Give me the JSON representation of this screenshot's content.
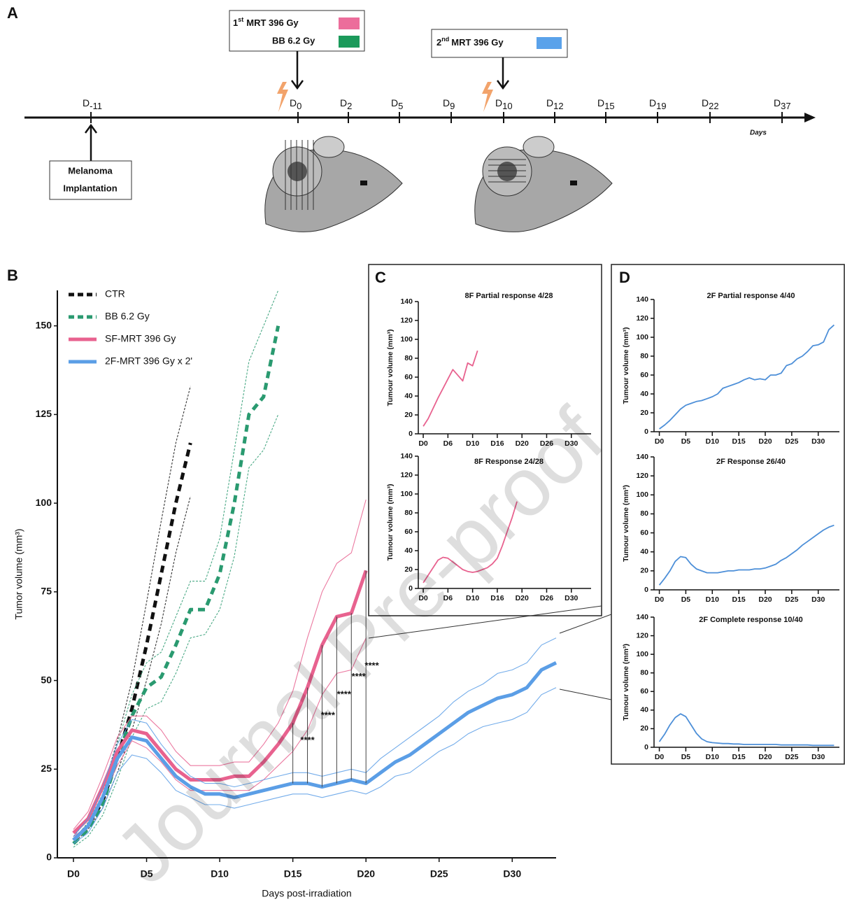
{
  "panels": [
    "A",
    "B",
    "C",
    "D"
  ],
  "timeline": {
    "box1": {
      "n": "1",
      "sup": "st",
      "text": "MRT 396 Gy",
      "color": "#ec6d9b"
    },
    "box1b": {
      "text": "BB 6.2 Gy",
      "color": "#1b9a5b"
    },
    "box2": {
      "n": "2",
      "sup": "nd",
      "text": "MRT 396 Gy",
      "color": "#5aa2ea"
    },
    "days": [
      [
        "D",
        "-11"
      ],
      [
        "D",
        "0"
      ],
      [
        "D",
        "2"
      ],
      [
        "D",
        "5"
      ],
      [
        "D",
        "9"
      ],
      [
        "D",
        "10"
      ],
      [
        "D",
        "12"
      ],
      [
        "D",
        "15"
      ],
      [
        "D",
        "19"
      ],
      [
        "D",
        "22"
      ],
      [
        "D",
        "37"
      ]
    ],
    "axis_label": "Days",
    "implant": [
      "Melanoma",
      "Implantation"
    ]
  },
  "watermark": "Journal Pre-proof",
  "chart_data": [
    {
      "type": "line",
      "xlabel": "Days post-irradiation",
      "ylabel": "Tumor volume  (mm³)",
      "xlim": [
        -1.1,
        33
      ],
      "ylim": [
        0,
        160
      ],
      "xticks": [
        {
          "value": 0,
          "label": "D0"
        },
        {
          "value": 5,
          "label": "D5"
        },
        {
          "value": 10,
          "label": "D10"
        },
        {
          "value": 15,
          "label": "D15"
        },
        {
          "value": 20,
          "label": "D20"
        },
        {
          "value": 25,
          "label": "D25"
        },
        {
          "value": 30,
          "label": "D30"
        }
      ],
      "yticks": [
        0,
        25,
        50,
        75,
        100,
        125,
        150
      ],
      "legend": "top-left",
      "series": [
        {
          "name": "CTR",
          "color": "#111111",
          "dashed": true,
          "x": [
            0,
            1,
            2,
            3,
            4,
            5,
            6,
            7,
            8
          ],
          "values": [
            5,
            9,
            16,
            28,
            42,
            60,
            80,
            100,
            117
          ],
          "upper": [
            6,
            11,
            19,
            33,
            50,
            72,
            95,
            117,
            133
          ],
          "lower": [
            4,
            8,
            14,
            24,
            36,
            50,
            66,
            86,
            102
          ]
        },
        {
          "name": "BB 6.2 Gy",
          "color": "#2a9a70",
          "dashed": true,
          "x": [
            0,
            1,
            2,
            3,
            4,
            5,
            6,
            7,
            8,
            9,
            10,
            11,
            12,
            13,
            14
          ],
          "values": [
            4,
            8,
            15,
            28,
            40,
            48,
            51,
            60,
            70,
            70,
            80,
            100,
            125,
            130,
            150
          ],
          "upper": [
            5,
            10,
            18,
            32,
            46,
            55,
            58,
            68,
            78,
            78,
            90,
            115,
            140,
            150,
            160
          ],
          "lower": [
            3,
            6,
            12,
            22,
            34,
            42,
            44,
            52,
            62,
            63,
            70,
            85,
            110,
            115,
            125
          ]
        },
        {
          "name": "SF-MRT 396 Gy",
          "color": "#e8628f",
          "dashed": false,
          "x": [
            0,
            1,
            2,
            3,
            4,
            5,
            6,
            7,
            8,
            9,
            10,
            11,
            12,
            13,
            14,
            15,
            16,
            17,
            18,
            19,
            20
          ],
          "values": [
            7,
            11,
            20,
            30,
            36,
            35,
            30,
            25,
            22,
            22,
            22,
            23,
            23,
            27,
            32,
            38,
            48,
            60,
            68,
            69,
            81
          ],
          "upper": [
            8,
            13,
            23,
            34,
            40,
            40,
            36,
            30,
            26,
            26,
            26,
            27,
            27,
            32,
            38,
            47,
            62,
            75,
            83,
            86,
            101
          ],
          "lower": [
            6,
            9,
            17,
            26,
            33,
            31,
            27,
            22,
            19,
            19,
            19,
            19,
            19,
            22,
            26,
            30,
            36,
            46,
            52,
            53,
            62
          ]
        },
        {
          "name": "2F-MRT 396 Gy x 2'",
          "color": "#5b9ee6",
          "dashed": false,
          "x": [
            0,
            1,
            2,
            3,
            4,
            5,
            6,
            7,
            8,
            9,
            10,
            11,
            12,
            13,
            14,
            15,
            16,
            17,
            18,
            19,
            20,
            21,
            22,
            23,
            24,
            25,
            26,
            27,
            28,
            29,
            30,
            31,
            32,
            33
          ],
          "values": [
            5,
            9,
            17,
            28,
            34,
            33,
            28,
            23,
            20,
            18,
            18,
            17,
            18,
            19,
            20,
            21,
            21,
            20,
            21,
            22,
            21,
            24,
            27,
            29,
            32,
            35,
            38,
            41,
            43,
            45,
            46,
            48,
            53,
            55
          ],
          "upper": [
            6,
            11,
            20,
            32,
            39,
            38,
            32,
            27,
            23,
            21,
            21,
            20,
            21,
            22,
            23,
            24,
            24,
            23,
            24,
            25,
            24,
            28,
            31,
            34,
            37,
            40,
            44,
            47,
            49,
            52,
            53,
            55,
            60,
            62
          ],
          "lower": [
            4,
            7,
            14,
            24,
            29,
            28,
            24,
            19,
            17,
            15,
            15,
            14,
            15,
            16,
            17,
            18,
            18,
            17,
            18,
            19,
            18,
            20,
            23,
            24,
            27,
            30,
            32,
            35,
            37,
            38,
            39,
            41,
            46,
            48
          ]
        }
      ],
      "annotations": [
        {
          "x": 16,
          "y": 33,
          "text": "****"
        },
        {
          "x": 17.4,
          "y": 40,
          "text": "****"
        },
        {
          "x": 18.5,
          "y": 46,
          "text": "****"
        },
        {
          "x": 19.5,
          "y": 51,
          "text": "****"
        },
        {
          "x": 20.4,
          "y": 54,
          "text": "****"
        }
      ]
    },
    {
      "type": "line",
      "title": "8F Partial response 4/28",
      "ylabel": "Tumour volume (mm³)",
      "xlim": [
        -1,
        34
      ],
      "ylim": [
        0,
        140
      ],
      "xticks": [
        {
          "value": 0,
          "label": "D0"
        },
        {
          "value": 5,
          "label": "D6"
        },
        {
          "value": 10,
          "label": "D10"
        },
        {
          "value": 15,
          "label": "D16"
        },
        {
          "value": 20,
          "label": "D20"
        },
        {
          "value": 25,
          "label": "D26"
        },
        {
          "value": 30,
          "label": "D30"
        }
      ],
      "yticks": [
        0,
        20,
        40,
        60,
        80,
        100,
        120,
        140
      ],
      "series": [
        {
          "color": "#e8628f",
          "x": [
            0,
            1,
            2,
            3,
            4,
            5,
            6,
            7,
            8,
            9,
            10,
            11
          ],
          "values": [
            8,
            16,
            27,
            38,
            48,
            58,
            68,
            62,
            56,
            75,
            72,
            88
          ]
        }
      ]
    },
    {
      "type": "line",
      "title": "8F Response 24/28",
      "ylabel": "Tumour volume (mm³)",
      "xlim": [
        -1,
        34
      ],
      "ylim": [
        0,
        140
      ],
      "xticks": [
        {
          "value": 0,
          "label": "D0"
        },
        {
          "value": 5,
          "label": "D6"
        },
        {
          "value": 10,
          "label": "D10"
        },
        {
          "value": 15,
          "label": "D16"
        },
        {
          "value": 20,
          "label": "D20"
        },
        {
          "value": 25,
          "label": "D26"
        },
        {
          "value": 30,
          "label": "D30"
        }
      ],
      "yticks": [
        0,
        20,
        40,
        60,
        80,
        100,
        120,
        140
      ],
      "series": [
        {
          "color": "#e8628f",
          "x": [
            0,
            1,
            2,
            3,
            4,
            5,
            6,
            7,
            8,
            9,
            10,
            11,
            12,
            13,
            14,
            15,
            16,
            17,
            18,
            19
          ],
          "values": [
            6,
            14,
            22,
            30,
            33,
            32,
            28,
            24,
            20,
            18,
            17,
            18,
            20,
            22,
            26,
            32,
            45,
            60,
            75,
            92
          ]
        }
      ]
    },
    {
      "type": "line",
      "title": "2F Partial response 4/40",
      "ylabel": "Tumour volume (mm³)",
      "xlim": [
        -1,
        34
      ],
      "ylim": [
        0,
        140
      ],
      "xticks": [
        {
          "value": 0,
          "label": "D0"
        },
        {
          "value": 5,
          "label": "D5"
        },
        {
          "value": 10,
          "label": "D10"
        },
        {
          "value": 15,
          "label": "D15"
        },
        {
          "value": 20,
          "label": "D20"
        },
        {
          "value": 25,
          "label": "D25"
        },
        {
          "value": 30,
          "label": "D30"
        }
      ],
      "yticks": [
        0,
        20,
        40,
        60,
        80,
        100,
        120,
        140
      ],
      "series": [
        {
          "color": "#4d8fd8",
          "x": [
            0,
            1,
            2,
            3,
            4,
            5,
            6,
            7,
            8,
            9,
            10,
            11,
            12,
            13,
            14,
            15,
            16,
            17,
            18,
            19,
            20,
            21,
            22,
            23,
            24,
            25,
            26,
            27,
            28,
            29,
            30,
            31,
            32,
            33
          ],
          "values": [
            3,
            7,
            12,
            18,
            24,
            28,
            30,
            32,
            33,
            35,
            37,
            40,
            46,
            48,
            50,
            52,
            55,
            57,
            55,
            56,
            55,
            60,
            60,
            62,
            70,
            72,
            77,
            80,
            85,
            91,
            92,
            95,
            108,
            113
          ]
        }
      ]
    },
    {
      "type": "line",
      "title": "2F Response 26/40",
      "ylabel": "Tumour volume (mm³)",
      "xlim": [
        -1,
        34
      ],
      "ylim": [
        0,
        140
      ],
      "xticks": [
        {
          "value": 0,
          "label": "D0"
        },
        {
          "value": 5,
          "label": "D5"
        },
        {
          "value": 10,
          "label": "D10"
        },
        {
          "value": 15,
          "label": "D15"
        },
        {
          "value": 20,
          "label": "D20"
        },
        {
          "value": 25,
          "label": "D25"
        },
        {
          "value": 30,
          "label": "D30"
        }
      ],
      "yticks": [
        0,
        20,
        40,
        60,
        80,
        100,
        120,
        140
      ],
      "series": [
        {
          "color": "#4d8fd8",
          "x": [
            0,
            1,
            2,
            3,
            4,
            5,
            6,
            7,
            8,
            9,
            10,
            11,
            12,
            13,
            14,
            15,
            16,
            17,
            18,
            19,
            20,
            21,
            22,
            23,
            24,
            25,
            26,
            27,
            28,
            29,
            30,
            31,
            32,
            33
          ],
          "values": [
            5,
            12,
            20,
            30,
            35,
            34,
            27,
            22,
            20,
            18,
            18,
            18,
            19,
            20,
            20,
            21,
            21,
            21,
            22,
            22,
            23,
            25,
            27,
            31,
            34,
            38,
            42,
            47,
            51,
            55,
            59,
            63,
            66,
            68
          ]
        }
      ]
    },
    {
      "type": "line",
      "title": "2F Complete response 10/40",
      "ylabel": "Tumour volume (mm³)",
      "xlim": [
        -1,
        34
      ],
      "ylim": [
        0,
        140
      ],
      "xticks": [
        {
          "value": 0,
          "label": "D0"
        },
        {
          "value": 5,
          "label": "D5"
        },
        {
          "value": 10,
          "label": "D10"
        },
        {
          "value": 15,
          "label": "D15"
        },
        {
          "value": 20,
          "label": "D20"
        },
        {
          "value": 25,
          "label": "D25"
        },
        {
          "value": 30,
          "label": "D30"
        }
      ],
      "yticks": [
        0,
        20,
        40,
        60,
        80,
        100,
        120,
        140
      ],
      "series": [
        {
          "color": "#4d8fd8",
          "x": [
            0,
            1,
            2,
            3,
            4,
            5,
            6,
            7,
            8,
            9,
            10,
            11,
            12,
            13,
            14,
            15,
            16,
            17,
            18,
            19,
            20,
            21,
            22,
            23,
            24,
            25,
            26,
            27,
            28,
            29,
            30,
            31,
            32,
            33
          ],
          "values": [
            6,
            14,
            24,
            32,
            36,
            33,
            24,
            15,
            9,
            6,
            5,
            4.5,
            4,
            4,
            3.5,
            3.5,
            3,
            3,
            3,
            3,
            3,
            3,
            3,
            2.5,
            2.5,
            2.5,
            2.5,
            2.5,
            2.5,
            2,
            2,
            2,
            2,
            2
          ]
        }
      ]
    }
  ]
}
